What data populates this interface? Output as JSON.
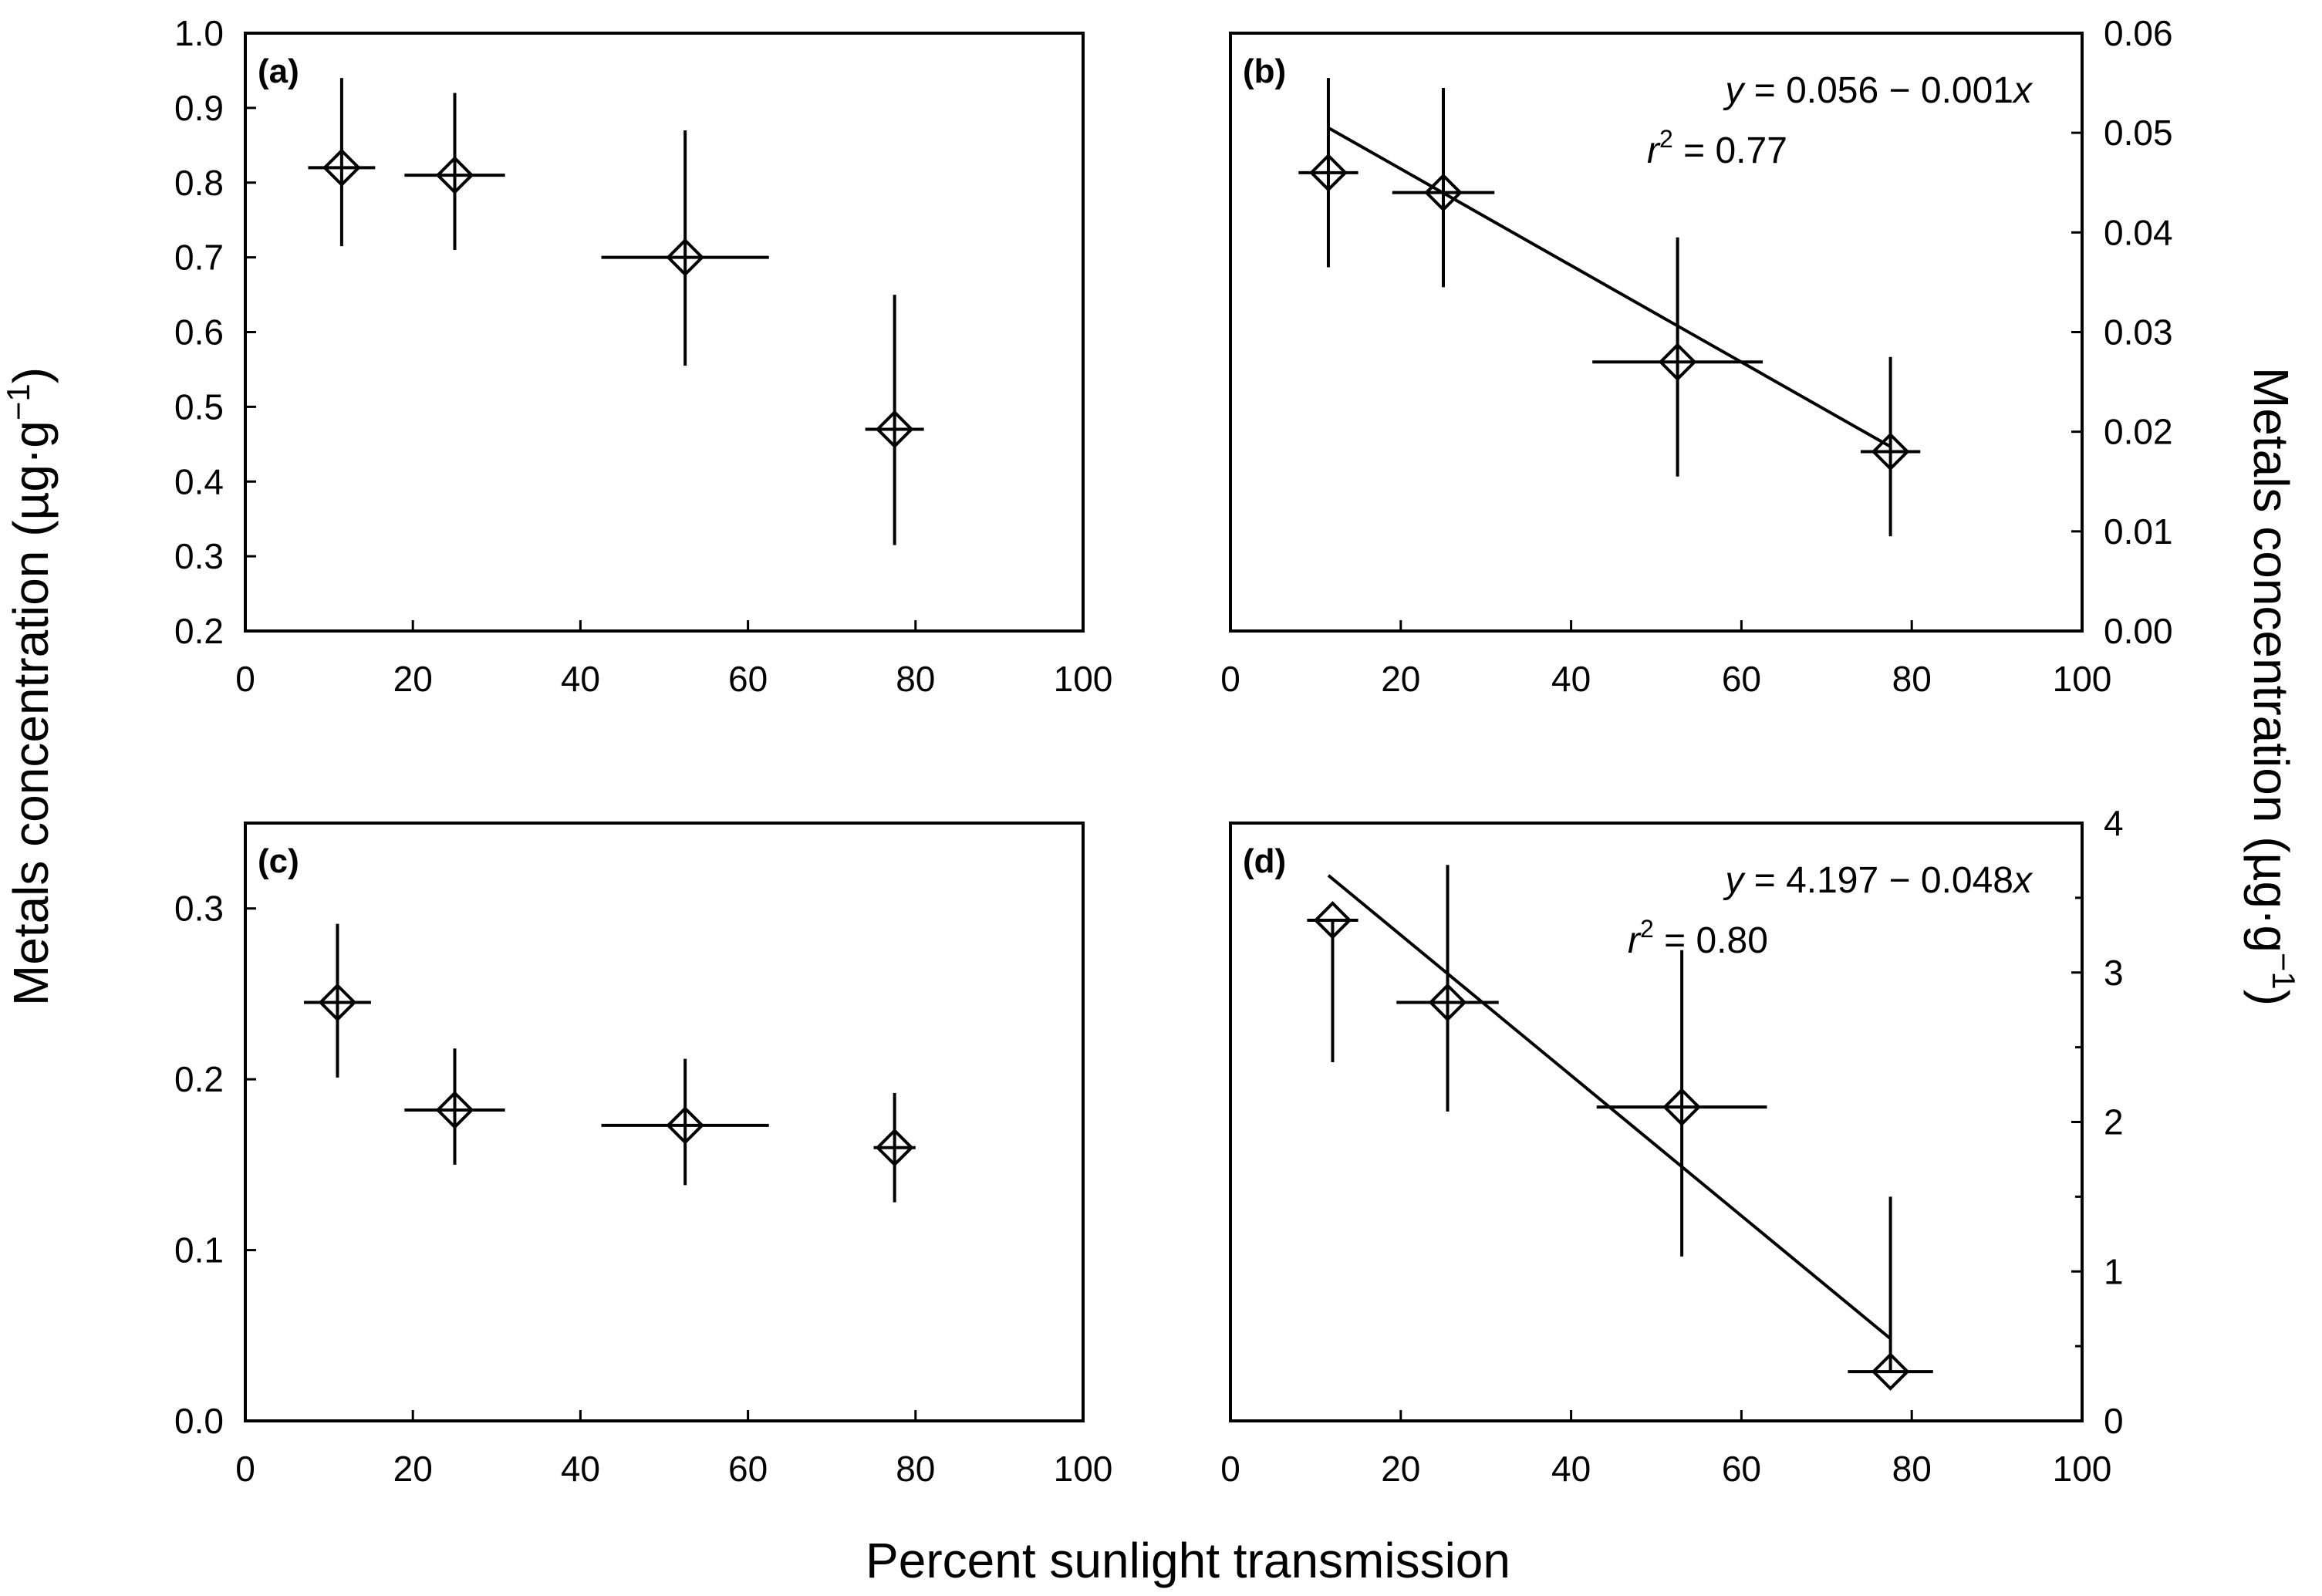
{
  "figure": {
    "xlabel": "Percent sunlight transmission",
    "ylabel_left": "Metals concentration (µg·g",
    "ylabel_right": "Metals concentration (µg·g",
    "ylabel_unit_sup": "−1",
    "ylabel_close": ")"
  },
  "chart_data": [
    {
      "type": "scatter",
      "panel": "(a)",
      "xlabel": "Percent sunlight transmission",
      "ylabel": "Metals concentration (µg·g−1)",
      "xlim": [
        0,
        100
      ],
      "ylim": [
        0.2,
        1.0
      ],
      "xticks": [
        0,
        20,
        40,
        60,
        80,
        100
      ],
      "yticks": [
        0.2,
        0.3,
        0.4,
        0.5,
        0.6,
        0.7,
        0.8,
        0.9,
        1.0
      ],
      "ytick_labels": [
        "0.2",
        "0.3",
        "0.4",
        "0.5",
        "0.6",
        "0.7",
        "0.8",
        "0.9",
        "1.0"
      ],
      "yaxis_side": "left",
      "points": [
        {
          "x": 11.5,
          "y": 0.82,
          "xerr": 4,
          "yerr_low": 0.105,
          "yerr_high": 0.12
        },
        {
          "x": 25,
          "y": 0.81,
          "xerr": 6,
          "yerr_low": 0.1,
          "yerr_high": 0.11
        },
        {
          "x": 52.5,
          "y": 0.7,
          "xerr": 10,
          "yerr_low": 0.145,
          "yerr_high": 0.17
        },
        {
          "x": 77.5,
          "y": 0.47,
          "xerr": 3.5,
          "yerr_low": 0.155,
          "yerr_high": 0.18
        }
      ],
      "regression": null
    },
    {
      "type": "scatter",
      "panel": "(b)",
      "xlabel": "Percent sunlight transmission",
      "ylabel": "Metals concentration (µg·g−1)",
      "xlim": [
        0,
        100
      ],
      "ylim": [
        0,
        0.06
      ],
      "xticks": [
        0,
        20,
        40,
        60,
        80,
        100
      ],
      "yticks": [
        0,
        0.01,
        0.02,
        0.03,
        0.04,
        0.05,
        0.06
      ],
      "ytick_labels": [
        "0.00",
        "0.01",
        "0.02",
        "0.03",
        "0.04",
        "0.05",
        "0.06"
      ],
      "yaxis_side": "right",
      "points": [
        {
          "x": 11.5,
          "y": 0.046,
          "xerr": 3.5,
          "yerr_low": 0.0095,
          "yerr_high": 0.0095
        },
        {
          "x": 25,
          "y": 0.044,
          "xerr": 6,
          "yerr_low": 0.0095,
          "yerr_high": 0.0105
        },
        {
          "x": 52.5,
          "y": 0.027,
          "xerr": 10,
          "yerr_low": 0.0115,
          "yerr_high": 0.0125
        },
        {
          "x": 77.5,
          "y": 0.018,
          "xerr": 3.5,
          "yerr_low": 0.0085,
          "yerr_high": 0.0095
        }
      ],
      "regression": {
        "equation_lhs": "y",
        "equation_rhs": " = 0.056 − 0.001",
        "equation_var": "x",
        "r2_lhs": "r",
        "r2_sup": "2",
        "r2_rhs": " = 0.77",
        "line_x": [
          11.5,
          77.5
        ],
        "line_y": [
          0.0505,
          0.0185
        ]
      }
    },
    {
      "type": "scatter",
      "panel": "(c)",
      "xlabel": "Percent sunlight transmission",
      "ylabel": "Metals concentration (µg·g−1)",
      "xlim": [
        0,
        100
      ],
      "ylim": [
        0,
        0.35
      ],
      "xticks": [
        0,
        20,
        40,
        60,
        80,
        100
      ],
      "yticks": [
        0,
        0.1,
        0.2,
        0.3
      ],
      "ytick_labels": [
        "0.0",
        "0.1",
        "0.2",
        "0.3"
      ],
      "yaxis_side": "left",
      "points": [
        {
          "x": 11,
          "y": 0.245,
          "xerr": 4,
          "yerr_low": 0.044,
          "yerr_high": 0.046
        },
        {
          "x": 25,
          "y": 0.182,
          "xerr": 6,
          "yerr_low": 0.032,
          "yerr_high": 0.036
        },
        {
          "x": 52.5,
          "y": 0.173,
          "xerr": 10,
          "yerr_low": 0.035,
          "yerr_high": 0.039
        },
        {
          "x": 77.5,
          "y": 0.16,
          "xerr": 2.5,
          "yerr_low": 0.032,
          "yerr_high": 0.032
        }
      ],
      "regression": null
    },
    {
      "type": "scatter",
      "panel": "(d)",
      "xlabel": "Percent sunlight transmission",
      "ylabel": "Metals concentration (µg·g−1)",
      "xlim": [
        0,
        100
      ],
      "ylim": [
        0,
        4
      ],
      "xticks": [
        0,
        20,
        40,
        60,
        80,
        100
      ],
      "yticks": [
        0,
        1,
        2,
        3,
        4
      ],
      "ytick_labels": [
        "0",
        "1",
        "2",
        "3",
        "4"
      ],
      "minor_yticks": [
        0.5,
        1.5,
        2.5,
        3.5
      ],
      "yaxis_side": "right",
      "points": [
        {
          "x": 12,
          "y": 3.35,
          "xerr": 3,
          "yerr_low": 0.95,
          "yerr_high": 0
        },
        {
          "x": 25.5,
          "y": 2.8,
          "xerr": 6,
          "yerr_low": 0.73,
          "yerr_high": 0.92
        },
        {
          "x": 53,
          "y": 2.1,
          "xerr": 10,
          "yerr_low": 1.0,
          "yerr_high": 1.05
        },
        {
          "x": 77.5,
          "y": 0.33,
          "xerr": 5,
          "yerr_low": 0,
          "yerr_high": 1.17
        }
      ],
      "regression": {
        "equation_lhs": "y",
        "equation_rhs": " = 4.197 − 0.048",
        "equation_var": "x",
        "r2_lhs": "r",
        "r2_sup": "2",
        "r2_rhs": " = 0.80",
        "line_x": [
          11.5,
          77.5
        ],
        "line_y": [
          3.65,
          0.55
        ]
      }
    }
  ]
}
